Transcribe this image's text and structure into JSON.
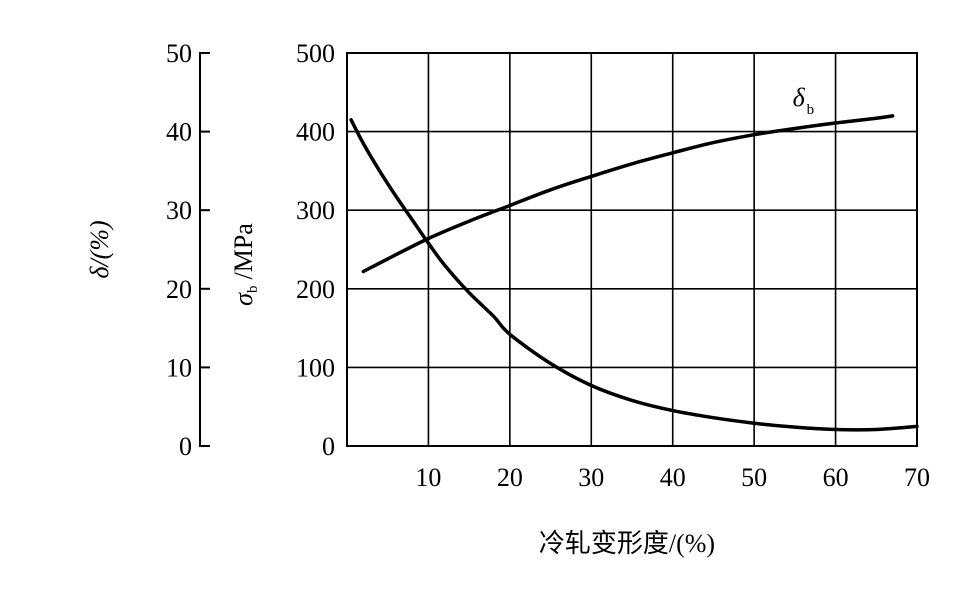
{
  "chart_data": {
    "type": "line",
    "xlabel": "冷轧变形度/(%)",
    "x_ticks": [
      "10",
      "20",
      "30",
      "40",
      "50",
      "60",
      "70"
    ],
    "xlim": [
      0,
      70
    ],
    "left_axis": {
      "label": "δ/(%)",
      "ylim": [
        0,
        50
      ],
      "ticks": [
        "50",
        "40",
        "30",
        "20",
        "10",
        "0"
      ]
    },
    "right_axis": {
      "label_symbol": "σ",
      "label_subscript": "b",
      "label_unit": "/MPa",
      "ylim": [
        0,
        500
      ],
      "ticks": [
        "500",
        "400",
        "300",
        "200",
        "100",
        "0"
      ]
    },
    "grid": true,
    "series": [
      {
        "axis": "sigma",
        "x": [
          0.5,
          2,
          4,
          6,
          8,
          10,
          12,
          15,
          18,
          20,
          25,
          30,
          35,
          40,
          45,
          50,
          55,
          60,
          65,
          70
        ],
        "y": [
          415,
          385,
          350,
          318,
          288,
          258,
          230,
          195,
          165,
          142,
          105,
          77,
          58,
          45,
          36,
          29,
          24,
          21,
          21,
          25
        ]
      },
      {
        "axis": "delta",
        "name_symbol": "δ",
        "name_subscript": "b",
        "x": [
          2,
          5,
          10,
          15,
          20,
          25,
          30,
          35,
          40,
          45,
          50,
          55,
          60,
          65,
          67
        ],
        "y": [
          22.2,
          23.8,
          26.4,
          28.6,
          30.6,
          32.6,
          34.3,
          35.9,
          37.3,
          38.6,
          39.6,
          40.4,
          41.1,
          41.7,
          42.0
        ]
      }
    ]
  }
}
